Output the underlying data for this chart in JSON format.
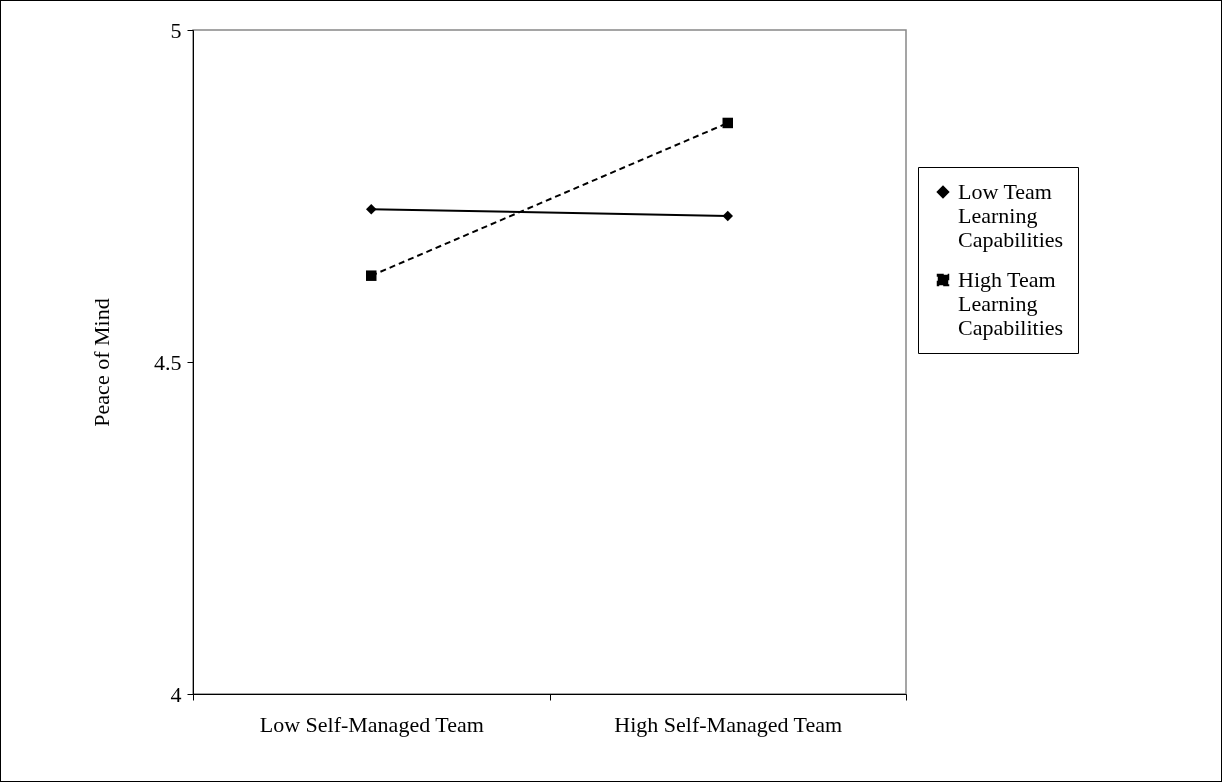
{
  "chart_data": {
    "type": "line",
    "categories": [
      "Low Self-Managed Team",
      "High Self-Managed Team"
    ],
    "ylabel": "Peace of Mind",
    "ylim": [
      4,
      5
    ],
    "yticks": [
      4,
      4.5,
      5
    ],
    "legend": "right",
    "grid": false,
    "series": [
      {
        "name": "Low Team Learning Capabilities",
        "color": "#000000",
        "values": [
          4.73,
          4.72
        ],
        "marker": "diamond",
        "line_style": "solid"
      },
      {
        "name": "High Team Learning Capabilities",
        "color": "#000000",
        "values": [
          4.63,
          4.86
        ],
        "marker": "square",
        "line_style": "dashed"
      }
    ]
  }
}
